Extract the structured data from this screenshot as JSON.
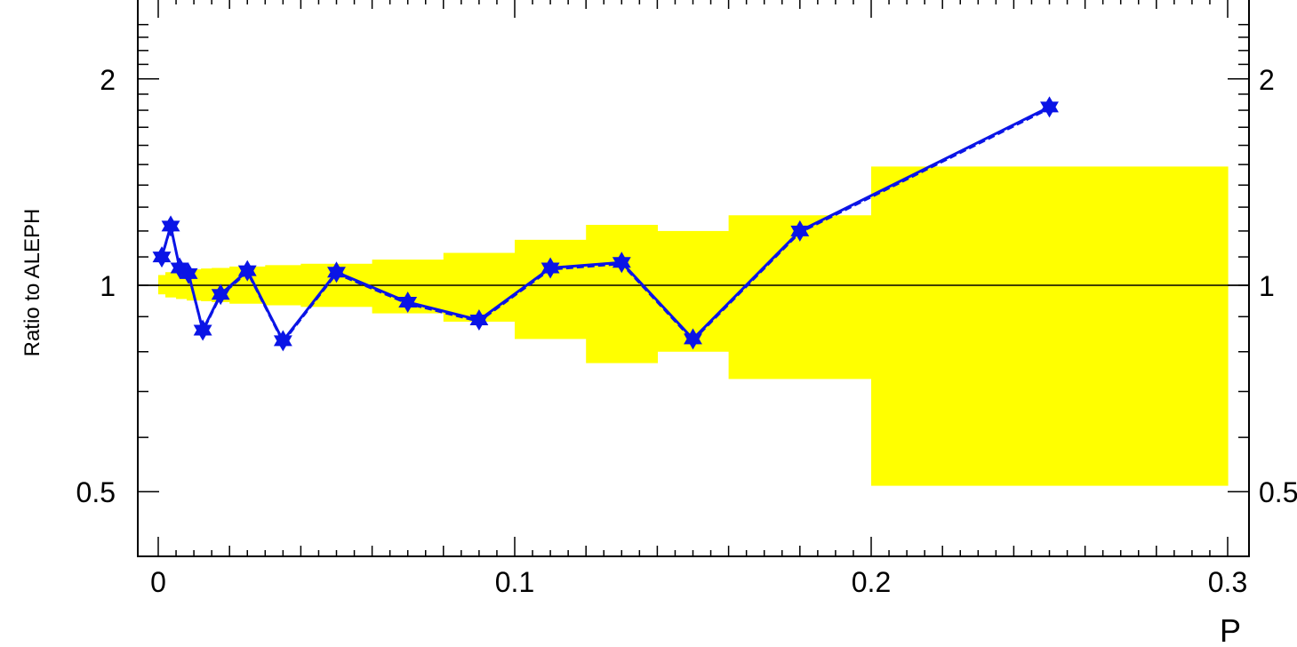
{
  "chart_data": {
    "type": "line",
    "xlabel": "P",
    "ylabel": "Ratio to ALEPH",
    "xlim": [
      0,
      0.3
    ],
    "ylim": [
      0.4,
      2.5
    ],
    "yscale": "log",
    "x_ticks": [
      {
        "value": 0,
        "label": "0"
      },
      {
        "value": 0.1,
        "label": "0.1"
      },
      {
        "value": 0.2,
        "label": "0.2"
      },
      {
        "value": 0.3,
        "label": "0.3"
      }
    ],
    "y_ticks": [
      {
        "value": 0.5,
        "label": "0.5"
      },
      {
        "value": 1,
        "label": "1"
      },
      {
        "value": 2,
        "label": "2"
      }
    ],
    "right_y_tick_labels": [
      "2",
      "1",
      "0.5"
    ],
    "reference_line": 1,
    "colors": {
      "band": "#ffff00",
      "series": "#0a14e6",
      "axis": "#000000"
    },
    "band": [
      {
        "x0": 0.0,
        "x1": 0.002,
        "low": 0.97,
        "high": 1.035
      },
      {
        "x0": 0.002,
        "x1": 0.005,
        "low": 0.96,
        "high": 1.045
      },
      {
        "x0": 0.005,
        "x1": 0.008,
        "low": 0.955,
        "high": 1.05
      },
      {
        "x0": 0.008,
        "x1": 0.012,
        "low": 0.95,
        "high": 1.055
      },
      {
        "x0": 0.012,
        "x1": 0.015,
        "low": 0.948,
        "high": 1.058
      },
      {
        "x0": 0.015,
        "x1": 0.02,
        "low": 0.945,
        "high": 1.06
      },
      {
        "x0": 0.02,
        "x1": 0.03,
        "low": 0.94,
        "high": 1.065
      },
      {
        "x0": 0.03,
        "x1": 0.04,
        "low": 0.935,
        "high": 1.07
      },
      {
        "x0": 0.04,
        "x1": 0.06,
        "low": 0.93,
        "high": 1.075
      },
      {
        "x0": 0.06,
        "x1": 0.08,
        "low": 0.91,
        "high": 1.09
      },
      {
        "x0": 0.08,
        "x1": 0.1,
        "low": 0.885,
        "high": 1.115
      },
      {
        "x0": 0.1,
        "x1": 0.12,
        "low": 0.835,
        "high": 1.165
      },
      {
        "x0": 0.12,
        "x1": 0.14,
        "low": 0.77,
        "high": 1.225
      },
      {
        "x0": 0.14,
        "x1": 0.16,
        "low": 0.8,
        "high": 1.2
      },
      {
        "x0": 0.16,
        "x1": 0.2,
        "low": 0.73,
        "high": 1.265
      },
      {
        "x0": 0.2,
        "x1": 0.3,
        "low": 0.51,
        "high": 1.49
      }
    ],
    "series": [
      {
        "x": [
          0.001,
          0.0035,
          0.006,
          0.0085,
          0.0125,
          0.0175,
          0.025,
          0.035,
          0.05,
          0.07,
          0.09,
          0.11,
          0.13,
          0.15,
          0.18,
          0.25
        ],
        "values": [
          1.1,
          1.22,
          1.06,
          1.04,
          0.86,
          0.97,
          1.05,
          0.83,
          1.045,
          0.945,
          0.89,
          1.06,
          1.08,
          0.835,
          1.2,
          1.82
        ]
      }
    ],
    "grid": false
  }
}
